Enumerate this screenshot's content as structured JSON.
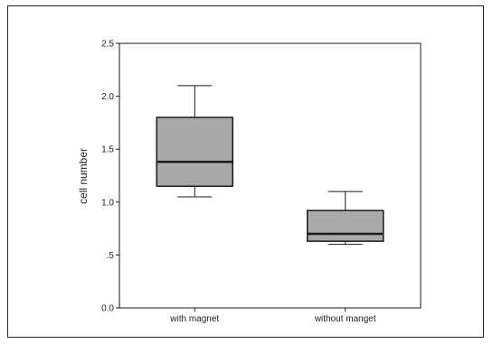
{
  "chart_data": {
    "type": "box",
    "ylabel": "cell number",
    "ylim": [
      0,
      2.5
    ],
    "yticks": [
      0,
      0.5,
      1.0,
      1.5,
      2.0,
      2.5
    ],
    "ytick_labels": [
      "0.0",
      ".5",
      "1.0",
      "1.5",
      "2.0",
      "2.5"
    ],
    "categories": [
      "with magnet",
      "without manget"
    ],
    "boxes": [
      {
        "category": "with magnet",
        "min": 1.05,
        "q1": 1.15,
        "median": 1.38,
        "q3": 1.8,
        "max": 2.1
      },
      {
        "category": "without manget",
        "min": 0.6,
        "q1": 0.63,
        "median": 0.7,
        "q3": 0.92,
        "max": 1.1
      }
    ],
    "colors": {
      "box_fill": "#a9a9a9",
      "stroke": "#1a1a1a"
    },
    "grid": false,
    "legend": "none"
  }
}
